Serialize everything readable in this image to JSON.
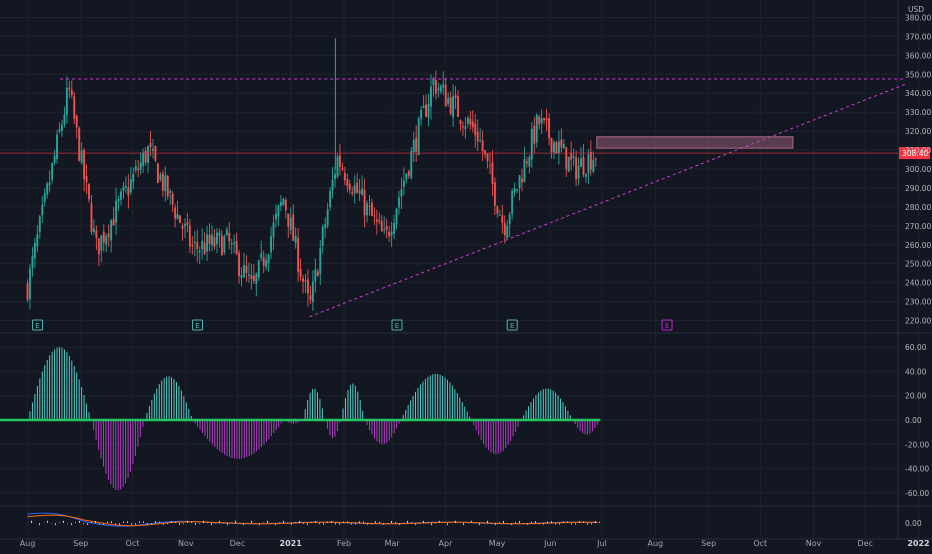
{
  "currency_label": "USD",
  "price_axis_ticks": [
    "380.00",
    "370.00",
    "360.00",
    "350.00",
    "340.00",
    "330.00",
    "320.00",
    "310.00",
    "300.00",
    "290.00",
    "280.00",
    "270.00",
    "260.00",
    "250.00",
    "240.00",
    "230.00",
    "220.00"
  ],
  "last_price_label": "308.40",
  "osc_axis_ticks": [
    "60.00",
    "40.00",
    "20.00",
    "0.00",
    "-20.00",
    "-40.00",
    "-60.00"
  ],
  "macd_axis_ticks": [
    "0.00"
  ],
  "time_axis_labels": [
    "Aug",
    "Sep",
    "Oct",
    "Nov",
    "Dec",
    "2021",
    "Feb",
    "Mar",
    "Apr",
    "May",
    "Jun",
    "Jul",
    "Aug",
    "Sep",
    "Oct",
    "Nov",
    "Dec",
    "2022"
  ],
  "earnings_marker_label": "E",
  "colors": {
    "background": "#131722",
    "up": "#26a69a",
    "down": "#ef5350",
    "pattern_line": "#d63ad8",
    "last_price": "#f23645",
    "osc_pos": "#4dd0c8",
    "osc_neg": "#b13fc4",
    "zero_line": "#22c55e",
    "zone": "#b06a8a"
  },
  "chart_data": [
    {
      "type": "candlestick",
      "title": "",
      "y_axis": "USD",
      "ylim": [
        215,
        385
      ],
      "x_range": [
        "2020-08-01",
        "2022-01-01"
      ],
      "key_closes": [
        {
          "date": "2020-08-01",
          "value": 238
        },
        {
          "date": "2020-08-25",
          "value": 342
        },
        {
          "date": "2020-09-10",
          "value": 258
        },
        {
          "date": "2020-10-10",
          "value": 310
        },
        {
          "date": "2020-11-05",
          "value": 258
        },
        {
          "date": "2020-11-25",
          "value": 262
        },
        {
          "date": "2020-12-10",
          "value": 236
        },
        {
          "date": "2020-12-28",
          "value": 285
        },
        {
          "date": "2021-01-12",
          "value": 226
        },
        {
          "date": "2021-01-28",
          "value": 306
        },
        {
          "date": "2021-02-25",
          "value": 262
        },
        {
          "date": "2021-03-25",
          "value": 346
        },
        {
          "date": "2021-04-20",
          "value": 318
        },
        {
          "date": "2021-05-05",
          "value": 270
        },
        {
          "date": "2021-05-25",
          "value": 325
        },
        {
          "date": "2021-06-15",
          "value": 300
        },
        {
          "date": "2021-06-28",
          "value": 308.4
        }
      ],
      "last_price": 308.4,
      "annotations": [
        {
          "kind": "horizontal_resistance",
          "y": 347.5,
          "from": "2020-08-20",
          "to": "2021-12-25"
        },
        {
          "kind": "rising_support",
          "from": {
            "date": "2021-01-12",
            "value": 222
          },
          "to": {
            "date": "2021-12-25",
            "value": 345
          }
        },
        {
          "kind": "price_zone",
          "y_low": 311,
          "y_high": 317,
          "from": "2021-06-28",
          "to": "2021-10-20"
        },
        {
          "kind": "earnings_markers",
          "dates": [
            "2020-08-01",
            "2020-11-02",
            "2021-02-26",
            "2021-05-04",
            "2021-08-02"
          ]
        }
      ]
    },
    {
      "type": "histogram",
      "title": "",
      "ylim": [
        -70,
        70
      ],
      "zero_line": true,
      "phases": [
        {
          "start": "2020-08-01",
          "end": "2020-09-07",
          "peak": 60
        },
        {
          "start": "2020-09-07",
          "end": "2020-10-08",
          "peak": -58
        },
        {
          "start": "2020-10-08",
          "end": "2020-11-05",
          "peak": 36
        },
        {
          "start": "2020-11-05",
          "end": "2020-12-28",
          "peak": -32
        },
        {
          "start": "2020-12-28",
          "end": "2021-01-08",
          "peak": -3
        },
        {
          "start": "2021-01-08",
          "end": "2021-01-21",
          "peak": 26
        },
        {
          "start": "2021-01-21",
          "end": "2021-01-30",
          "peak": -15
        },
        {
          "start": "2021-01-30",
          "end": "2021-02-13",
          "peak": 30
        },
        {
          "start": "2021-02-13",
          "end": "2021-03-06",
          "peak": -20
        },
        {
          "start": "2021-03-06",
          "end": "2021-04-16",
          "peak": 38
        },
        {
          "start": "2021-04-16",
          "end": "2021-05-15",
          "peak": -28
        },
        {
          "start": "2021-05-15",
          "end": "2021-06-14",
          "peak": 26
        },
        {
          "start": "2021-06-14",
          "end": "2021-06-30",
          "peak": -12
        }
      ]
    },
    {
      "type": "line",
      "title": "",
      "ylim": [
        -6,
        6
      ],
      "zero_line": true,
      "series": [
        {
          "color": "#2962ff"
        },
        {
          "color": "#ff6d00"
        }
      ]
    }
  ]
}
